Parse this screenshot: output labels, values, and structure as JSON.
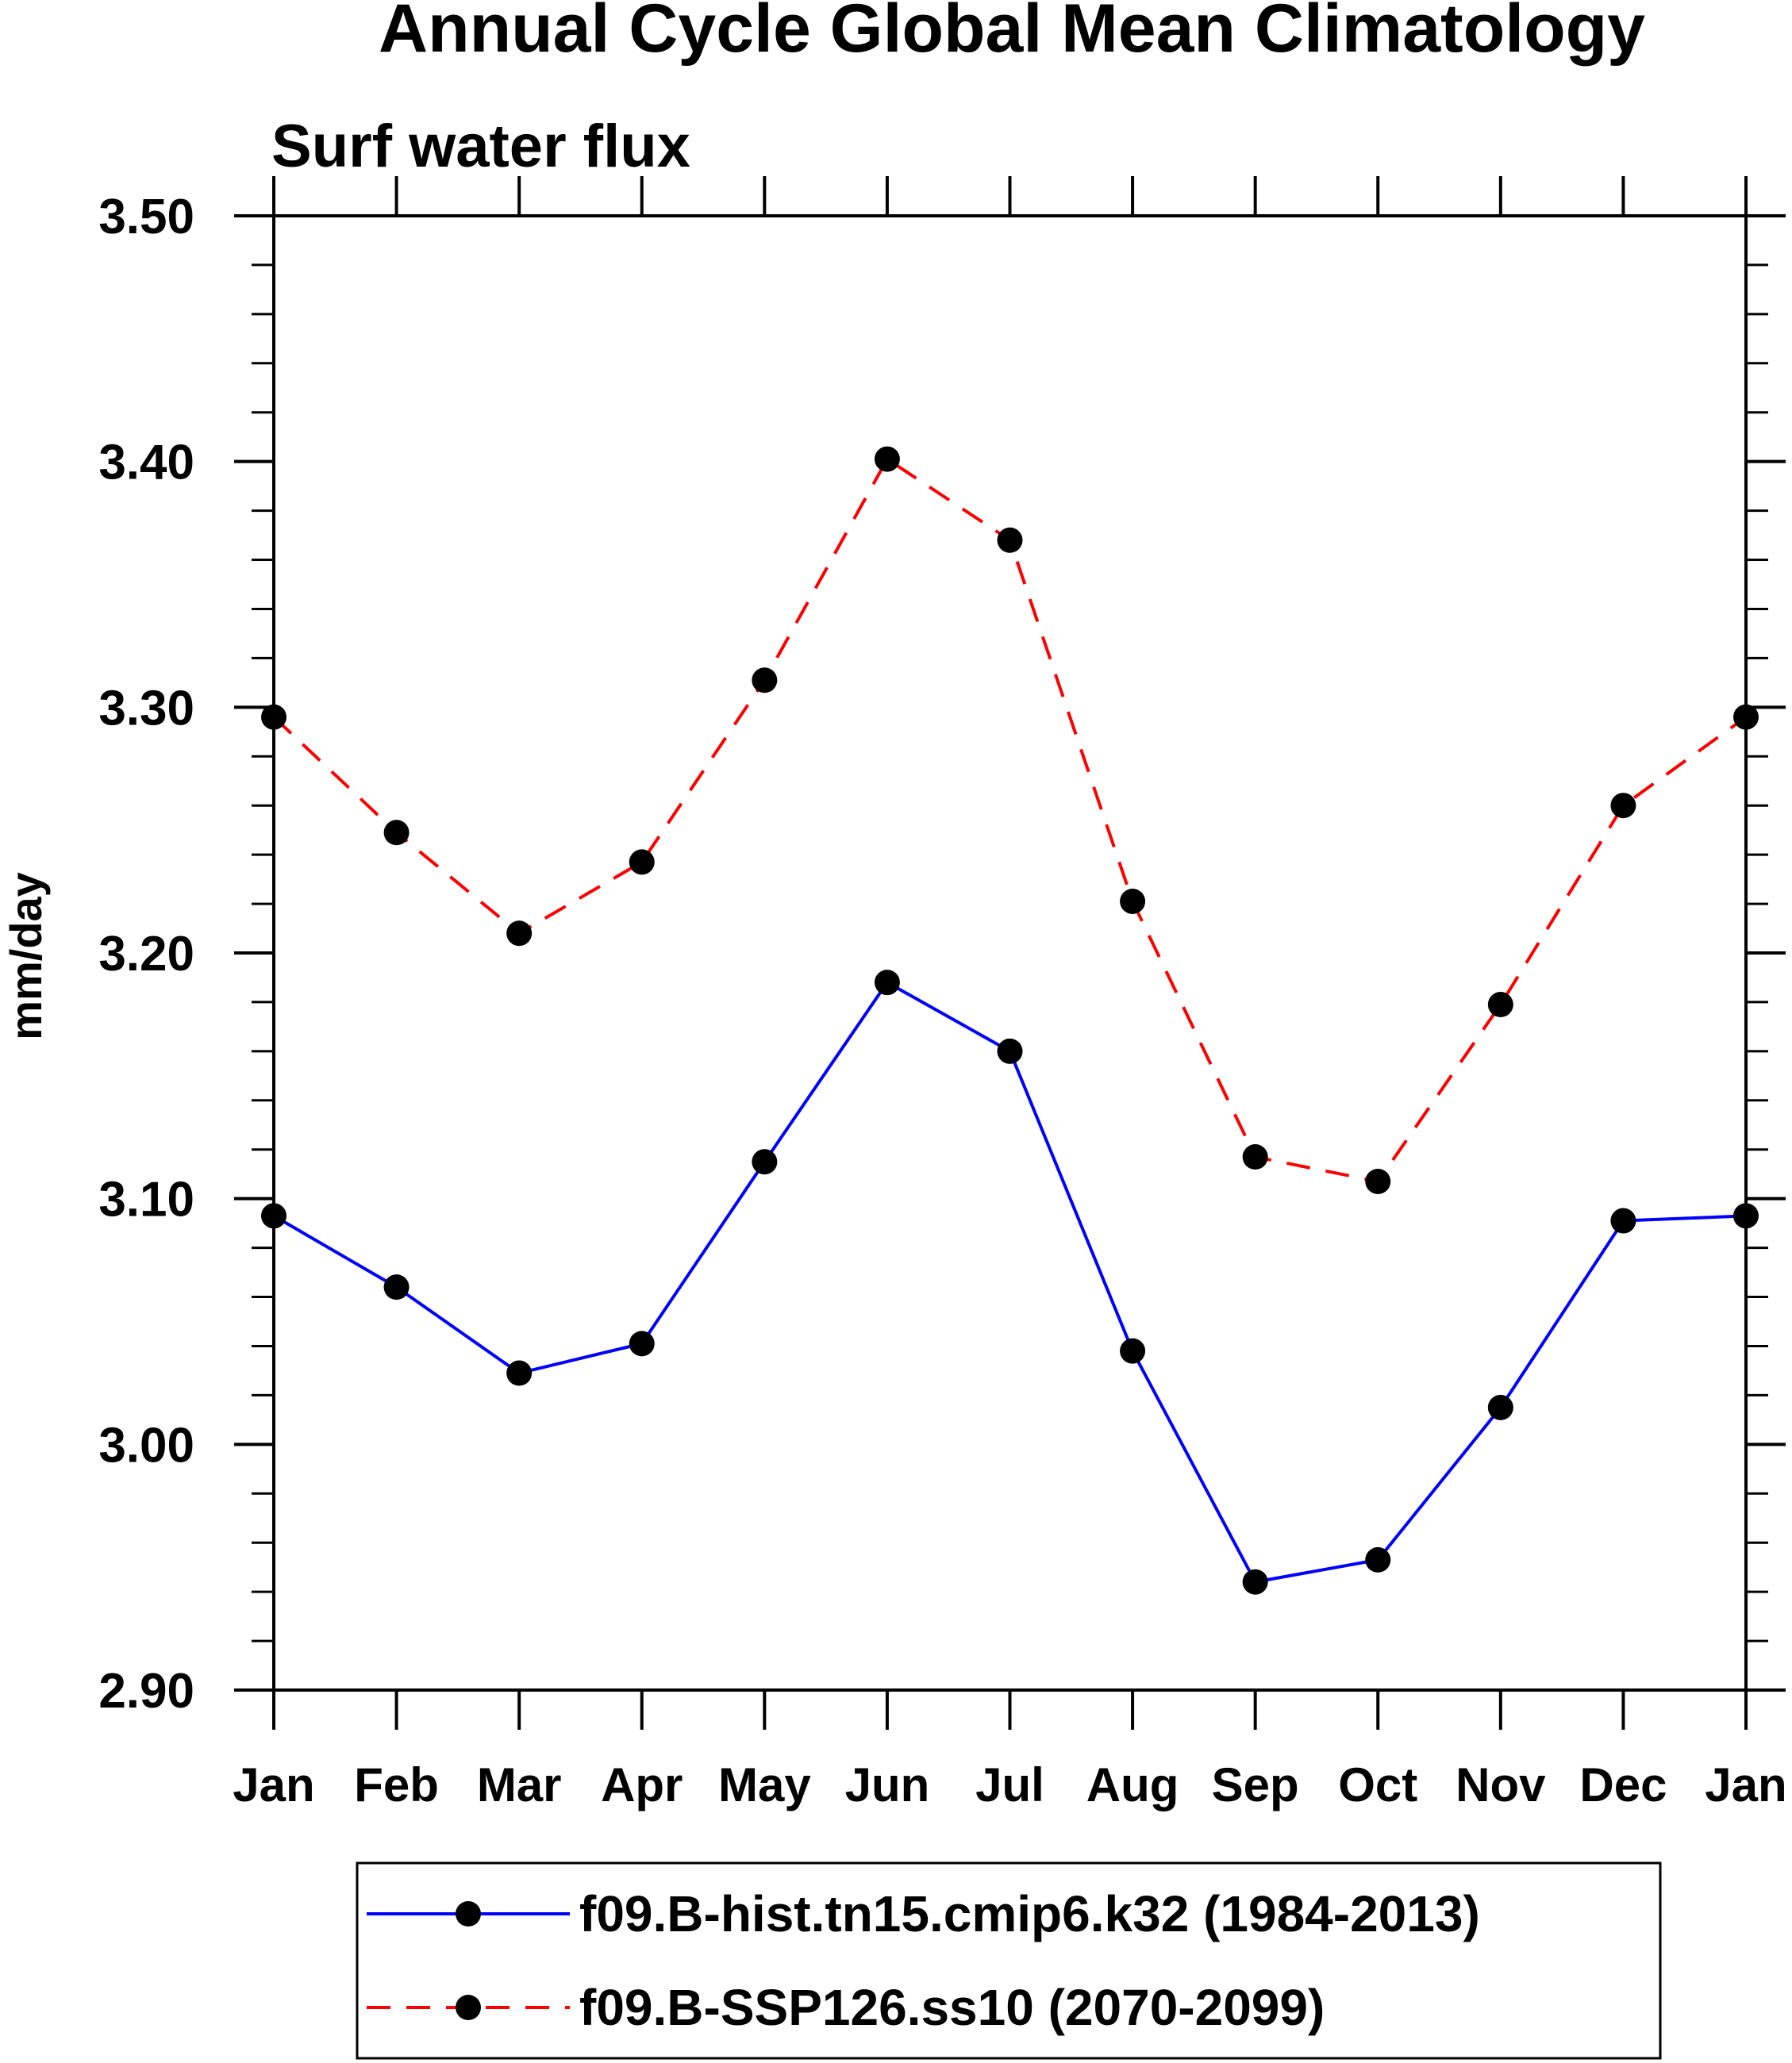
{
  "chart_data": {
    "type": "line",
    "title": "Annual Cycle Global Mean Climatology",
    "subtitle": "Surf water flux",
    "xlabel": "",
    "ylabel": "mm/day",
    "categories": [
      "Jan",
      "Feb",
      "Mar",
      "Apr",
      "May",
      "Jun",
      "Jul",
      "Aug",
      "Sep",
      "Oct",
      "Nov",
      "Dec",
      "Jan"
    ],
    "ylim": [
      2.9,
      3.5
    ],
    "yticks": [
      2.9,
      3.0,
      3.1,
      3.2,
      3.3,
      3.4,
      3.5
    ],
    "ytick_labels": [
      "2.90",
      "3.00",
      "3.10",
      "3.20",
      "3.30",
      "3.40",
      "3.50"
    ],
    "yminor_step": 0.02,
    "grid": false,
    "legend_position": "bottom",
    "series": [
      {
        "name": "f09.B-hist.tn15.cmip6.k32 (1984-2013)",
        "color": "#0000ff",
        "line_style": "solid",
        "marker": "filled-circle",
        "values": [
          3.093,
          3.064,
          3.029,
          3.041,
          3.115,
          3.188,
          3.16,
          3.038,
          2.944,
          2.953,
          3.015,
          3.091,
          3.093
        ]
      },
      {
        "name": "f09.B-SSP126.ss10 (2070-2099)",
        "color": "#ff0000",
        "line_style": "dashed",
        "marker": "filled-circle",
        "values": [
          3.296,
          3.249,
          3.208,
          3.237,
          3.311,
          3.401,
          3.368,
          3.221,
          3.117,
          3.107,
          3.179,
          3.26,
          3.296
        ]
      }
    ]
  }
}
